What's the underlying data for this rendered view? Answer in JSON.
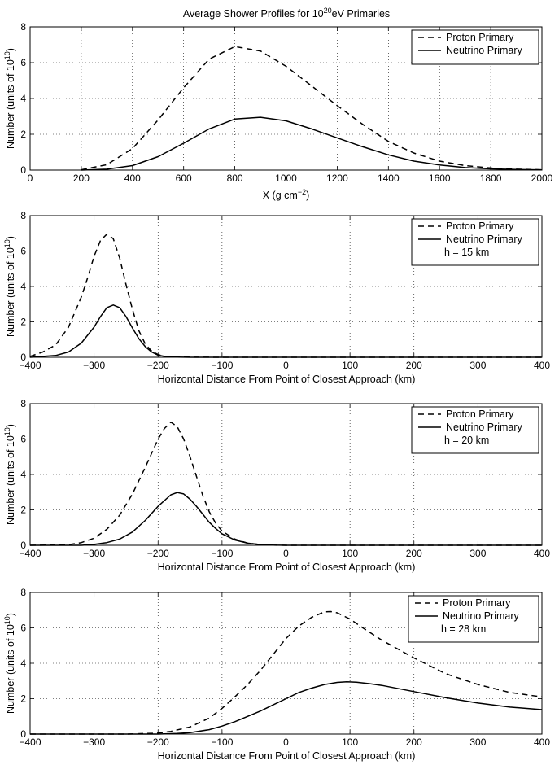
{
  "figure_title": {
    "prefix": "Average Shower Profiles for 10",
    "sup": "20",
    "suffix": "eV Primaries"
  },
  "ylabel": {
    "prefix": "Number (units of 10",
    "sup": "10",
    "suffix": ")"
  },
  "chart_data": [
    {
      "type": "line",
      "panel": "top",
      "xlabel_parts": {
        "prefix": "X  (g cm",
        "sup": "−2",
        "suffix": ")"
      },
      "xlim": [
        0,
        2000
      ],
      "ylim": [
        0,
        8
      ],
      "xticks": [
        0,
        200,
        400,
        600,
        800,
        1000,
        1200,
        1400,
        1600,
        1800,
        2000
      ],
      "yticks": [
        0,
        2,
        4,
        6,
        8
      ],
      "grid": true,
      "legend": {
        "placement": "top-right",
        "entries": [
          "Proton Primary",
          "Neutrino Primary"
        ],
        "extra": ""
      },
      "series": [
        {
          "name": "Proton Primary",
          "style": "dashed",
          "x": [
            200,
            300,
            400,
            500,
            600,
            700,
            800,
            900,
            1000,
            1100,
            1200,
            1300,
            1400,
            1500,
            1600,
            1700,
            1800,
            1900,
            2000
          ],
          "y": [
            0.02,
            0.3,
            1.2,
            2.8,
            4.6,
            6.2,
            6.9,
            6.65,
            5.8,
            4.7,
            3.6,
            2.55,
            1.6,
            0.95,
            0.5,
            0.25,
            0.12,
            0.05,
            0.02
          ]
        },
        {
          "name": "Neutrino Primary",
          "style": "solid",
          "x": [
            200,
            300,
            400,
            500,
            600,
            700,
            800,
            900,
            1000,
            1100,
            1200,
            1300,
            1400,
            1500,
            1600,
            1700,
            1800,
            1900,
            2000
          ],
          "y": [
            0.0,
            0.05,
            0.25,
            0.75,
            1.5,
            2.3,
            2.85,
            2.95,
            2.75,
            2.3,
            1.8,
            1.3,
            0.85,
            0.5,
            0.28,
            0.14,
            0.07,
            0.03,
            0.01
          ]
        }
      ]
    },
    {
      "type": "line",
      "panel": "h15",
      "xlabel": "Horizontal  Distance  From  Point  of  Closest  Approach  (km)",
      "xlim": [
        -400,
        400
      ],
      "ylim": [
        0,
        8
      ],
      "xticks": [
        -400,
        -300,
        -200,
        -100,
        0,
        100,
        200,
        300,
        400
      ],
      "yticks": [
        0,
        2,
        4,
        6,
        8
      ],
      "grid": true,
      "legend": {
        "placement": "top-right",
        "entries": [
          "Proton Primary",
          "Neutrino Primary"
        ],
        "extra": "h = 15 km"
      },
      "series": [
        {
          "name": "Proton Primary",
          "style": "dashed",
          "x": [
            -400,
            -380,
            -360,
            -340,
            -320,
            -310,
            -300,
            -290,
            -280,
            -270,
            -260,
            -250,
            -240,
            -230,
            -220,
            -210,
            -200,
            -190,
            -180,
            -150,
            -100,
            0,
            100,
            200,
            300,
            400
          ],
          "y": [
            0.05,
            0.3,
            0.7,
            1.7,
            3.4,
            4.5,
            5.7,
            6.6,
            6.95,
            6.7,
            5.6,
            4.1,
            2.7,
            1.5,
            0.75,
            0.35,
            0.15,
            0.05,
            0.02,
            0.01,
            0.0,
            0.0,
            0.0,
            0.0,
            0.0,
            0.0
          ]
        },
        {
          "name": "Neutrino Primary",
          "style": "solid",
          "x": [
            -400,
            -360,
            -340,
            -320,
            -300,
            -290,
            -280,
            -270,
            -260,
            -250,
            -240,
            -230,
            -220,
            -210,
            -200,
            -190,
            -180,
            -150,
            -100,
            0,
            100,
            200,
            300,
            400
          ],
          "y": [
            0.0,
            0.1,
            0.3,
            0.8,
            1.7,
            2.3,
            2.8,
            2.95,
            2.8,
            2.3,
            1.65,
            1.05,
            0.6,
            0.3,
            0.12,
            0.05,
            0.02,
            0.0,
            0.0,
            0.0,
            0.0,
            0.0,
            0.0,
            0.0
          ]
        }
      ]
    },
    {
      "type": "line",
      "panel": "h20",
      "xlabel": "Horizontal  Distance  From  Point  of  Closest  Approach  (km)",
      "xlim": [
        -400,
        400
      ],
      "ylim": [
        0,
        8
      ],
      "xticks": [
        -400,
        -300,
        -200,
        -100,
        0,
        100,
        200,
        300,
        400
      ],
      "yticks": [
        0,
        2,
        4,
        6,
        8
      ],
      "grid": true,
      "legend": {
        "placement": "top-right",
        "entries": [
          "Proton Primary",
          "Neutrino Primary"
        ],
        "extra": "h = 20 km"
      },
      "series": [
        {
          "name": "Proton Primary",
          "style": "dashed",
          "x": [
            -400,
            -340,
            -320,
            -300,
            -280,
            -260,
            -240,
            -220,
            -200,
            -190,
            -180,
            -170,
            -160,
            -150,
            -140,
            -130,
            -120,
            -110,
            -100,
            -80,
            -60,
            -40,
            -20,
            0,
            100,
            200,
            300,
            400
          ],
          "y": [
            0.0,
            0.03,
            0.15,
            0.4,
            0.9,
            1.7,
            2.9,
            4.4,
            6.0,
            6.6,
            6.95,
            6.7,
            6.0,
            5.0,
            3.9,
            2.8,
            1.9,
            1.25,
            0.8,
            0.35,
            0.12,
            0.04,
            0.01,
            0.0,
            0.0,
            0.0,
            0.0,
            0.0
          ]
        },
        {
          "name": "Neutrino Primary",
          "style": "solid",
          "x": [
            -400,
            -320,
            -300,
            -280,
            -260,
            -240,
            -220,
            -200,
            -180,
            -170,
            -160,
            -150,
            -140,
            -130,
            -120,
            -110,
            -100,
            -80,
            -60,
            -40,
            -20,
            0,
            100,
            200,
            300,
            400
          ],
          "y": [
            0.0,
            0.0,
            0.05,
            0.15,
            0.35,
            0.75,
            1.4,
            2.2,
            2.85,
            2.98,
            2.9,
            2.6,
            2.2,
            1.75,
            1.3,
            0.95,
            0.65,
            0.3,
            0.12,
            0.04,
            0.01,
            0.0,
            0.0,
            0.0,
            0.0,
            0.0
          ]
        }
      ]
    },
    {
      "type": "line",
      "panel": "h28",
      "xlabel": "Horizontal  Distance  From  Point  of  Closest  Approach  (km)",
      "xlim": [
        -400,
        400
      ],
      "ylim": [
        0,
        8
      ],
      "xticks": [
        -400,
        -300,
        -200,
        -100,
        0,
        100,
        200,
        300,
        400
      ],
      "yticks": [
        0,
        2,
        4,
        6,
        8
      ],
      "grid": true,
      "legend": {
        "placement": "top-right",
        "entries": [
          "Proton Primary",
          "Neutrino Primary"
        ],
        "extra": "h = 28 km"
      },
      "series": [
        {
          "name": "Proton Primary",
          "style": "dashed",
          "x": [
            -400,
            -300,
            -250,
            -200,
            -180,
            -150,
            -120,
            -100,
            -80,
            -60,
            -40,
            -20,
            0,
            20,
            40,
            60,
            70,
            80,
            100,
            120,
            150,
            200,
            250,
            300,
            350,
            400
          ],
          "y": [
            0.0,
            0.0,
            0.0,
            0.05,
            0.15,
            0.4,
            0.9,
            1.45,
            2.1,
            2.8,
            3.6,
            4.5,
            5.4,
            6.1,
            6.6,
            6.9,
            6.92,
            6.85,
            6.5,
            6.0,
            5.3,
            4.3,
            3.4,
            2.8,
            2.35,
            2.1
          ]
        },
        {
          "name": "Neutrino Primary",
          "style": "solid",
          "x": [
            -400,
            -300,
            -200,
            -170,
            -150,
            -120,
            -100,
            -80,
            -60,
            -40,
            -20,
            0,
            20,
            40,
            60,
            80,
            95,
            110,
            130,
            150,
            200,
            250,
            300,
            350,
            400
          ],
          "y": [
            0.0,
            0.0,
            0.0,
            0.03,
            0.08,
            0.25,
            0.45,
            0.7,
            1.0,
            1.3,
            1.65,
            2.0,
            2.35,
            2.6,
            2.8,
            2.92,
            2.95,
            2.93,
            2.85,
            2.75,
            2.4,
            2.05,
            1.75,
            1.52,
            1.38
          ]
        }
      ]
    }
  ]
}
